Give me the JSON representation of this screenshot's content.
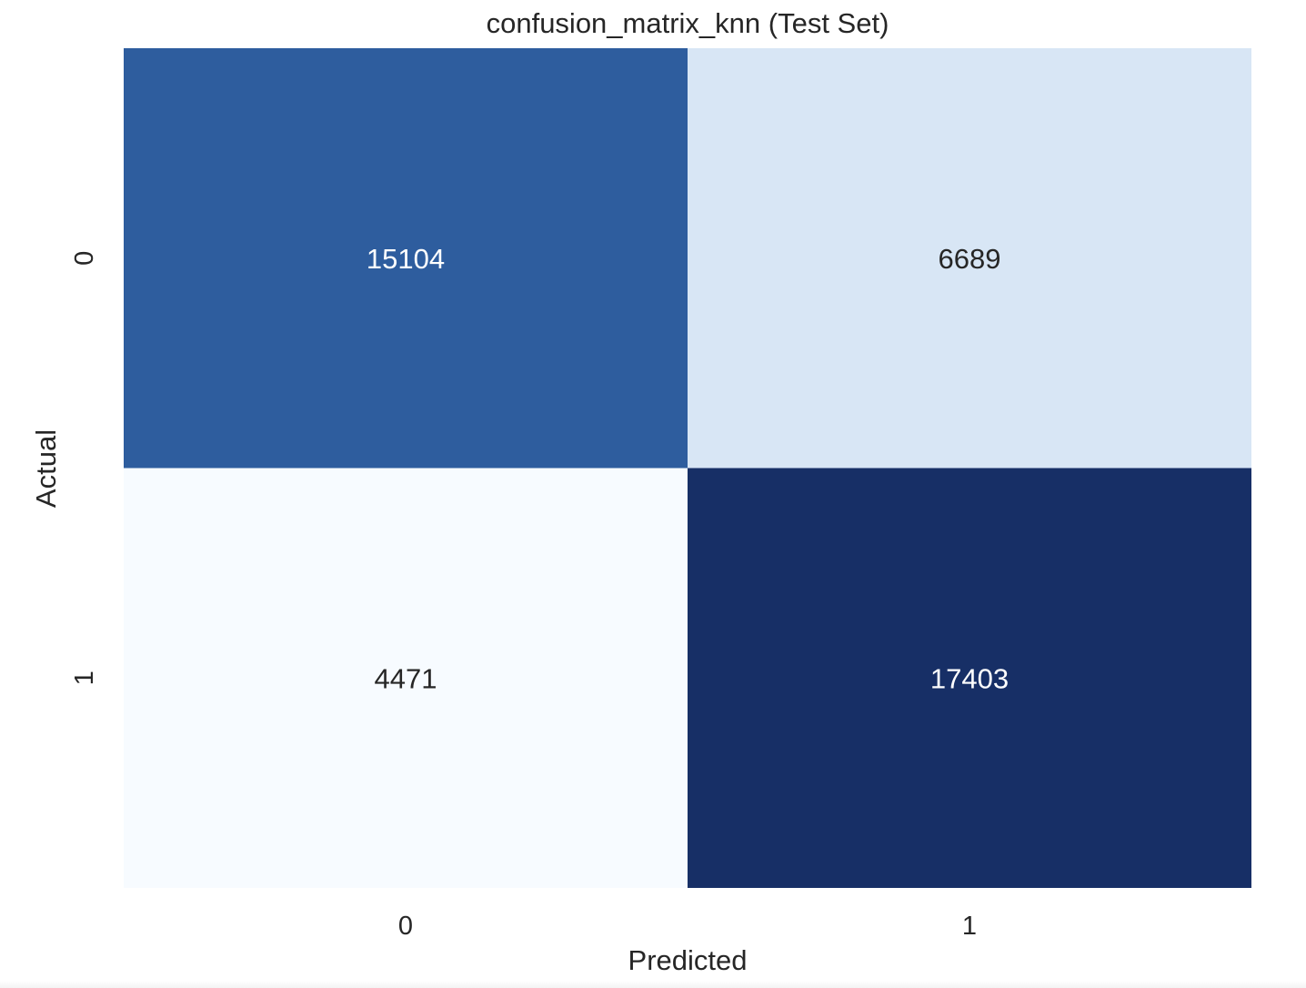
{
  "chart_data": {
    "type": "heatmap",
    "title": "confusion_matrix_knn (Test Set)",
    "xlabel": "Predicted",
    "ylabel": "Actual",
    "x_categories": [
      "0",
      "1"
    ],
    "y_categories": [
      "0",
      "1"
    ],
    "values": [
      [
        15104,
        6689
      ],
      [
        4471,
        17403
      ]
    ],
    "colormap": "Blues",
    "colorbar": false,
    "colors": {
      "min": "#f7fbff",
      "low": "#d8e6f5",
      "mid": "#2e5e9f",
      "max": "#172f66",
      "text_dark": "#262626",
      "text_light": "#ffffff"
    }
  }
}
